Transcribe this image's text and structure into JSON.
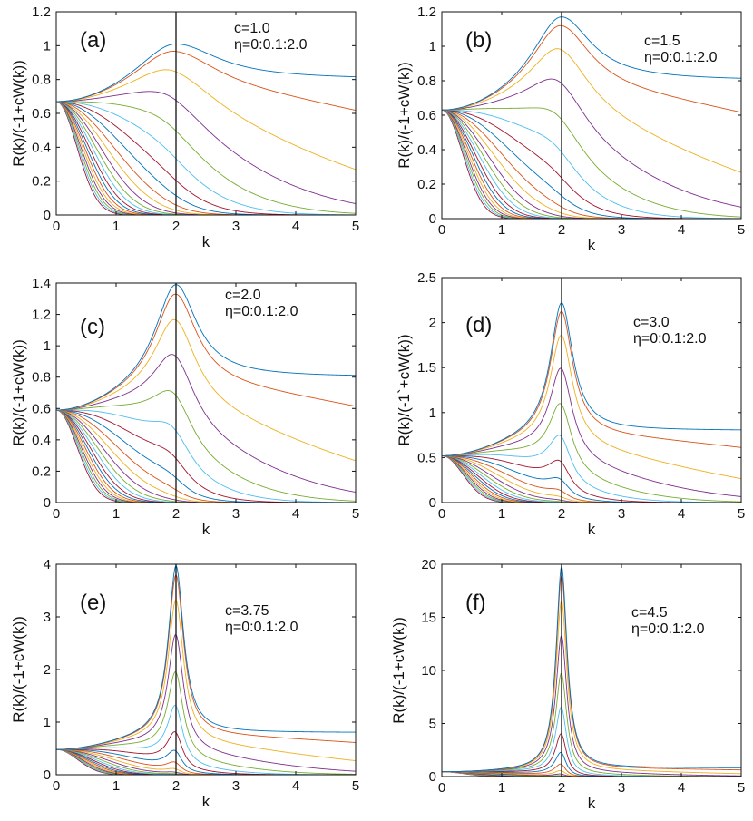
{
  "chart_data": [
    {
      "type": "line",
      "panel_label": "(a)",
      "c": 1.0,
      "annotation_c": "c=1.0",
      "annotation_eta": "η=0:0.1:2.0",
      "xlabel": "k",
      "ylabel": "R(k)/(-1+cW(k))",
      "xlim": [
        0,
        5
      ],
      "ylim": [
        0,
        1.2
      ],
      "xticks": [
        "0",
        "1",
        "2",
        "3",
        "4",
        "5"
      ],
      "yticks": [
        "0",
        "0.2",
        "0.4",
        "0.6",
        "0.8",
        "1",
        "1.2"
      ],
      "ytick_values": [
        0,
        0.2,
        0.4,
        0.6,
        0.8,
        1.0,
        1.2
      ],
      "y0": 0.67,
      "peak_eta0": 1.01,
      "tail_eta0": 0.8,
      "vertical_line_x": 2,
      "eta": [
        0,
        0.1,
        0.2,
        0.3,
        0.4,
        0.5,
        0.6,
        0.7,
        0.8,
        0.9,
        1.0,
        1.1,
        1.2,
        1.3,
        1.4,
        1.5,
        1.6,
        1.7,
        1.8,
        1.9,
        2.0
      ]
    },
    {
      "type": "line",
      "panel_label": "(b)",
      "c": 1.5,
      "annotation_c": "c=1.5",
      "annotation_eta": "η=0:0.1:2.0",
      "xlabel": "k",
      "ylabel": "R(k)/(-1+cW(k))",
      "xlim": [
        0,
        5
      ],
      "ylim": [
        0,
        1.2
      ],
      "xticks": [
        "0",
        "1",
        "2",
        "3",
        "4",
        "5"
      ],
      "yticks": [
        "0",
        "0.2",
        "0.4",
        "0.6",
        "0.8",
        "1",
        "1.2"
      ],
      "ytick_values": [
        0,
        0.2,
        0.4,
        0.6,
        0.8,
        1.0,
        1.2
      ],
      "y0": 0.63,
      "peak_eta0": 1.17,
      "tail_eta0": 0.8,
      "vertical_line_x": 2,
      "eta": [
        0,
        0.1,
        0.2,
        0.3,
        0.4,
        0.5,
        0.6,
        0.7,
        0.8,
        0.9,
        1.0,
        1.1,
        1.2,
        1.3,
        1.4,
        1.5,
        1.6,
        1.7,
        1.8,
        1.9,
        2.0
      ]
    },
    {
      "type": "line",
      "panel_label": "(c)",
      "c": 2.0,
      "annotation_c": "c=2.0",
      "annotation_eta": "η=0:0.1:2.0",
      "xlabel": "k",
      "ylabel": "R(k)/(-1+cW(k))",
      "xlim": [
        0,
        5
      ],
      "ylim": [
        0,
        1.4
      ],
      "xticks": [
        "0",
        "1",
        "2",
        "3",
        "4",
        "5"
      ],
      "yticks": [
        "0",
        "0.2",
        "0.4",
        "0.6",
        "0.8",
        "1",
        "1.2",
        "1.4"
      ],
      "ytick_values": [
        0,
        0.2,
        0.4,
        0.6,
        0.8,
        1.0,
        1.2,
        1.4
      ],
      "y0": 0.59,
      "peak_eta0": 1.39,
      "tail_eta0": 0.8,
      "vertical_line_x": 2,
      "eta": [
        0,
        0.1,
        0.2,
        0.3,
        0.4,
        0.5,
        0.6,
        0.7,
        0.8,
        0.9,
        1.0,
        1.1,
        1.2,
        1.3,
        1.4,
        1.5,
        1.6,
        1.7,
        1.8,
        1.9,
        2.0
      ]
    },
    {
      "type": "line",
      "panel_label": "(d)",
      "c": 3.0,
      "annotation_c": "c=3.0",
      "annotation_eta": "η=0:0.1:2.0",
      "xlabel": "k",
      "ylabel": "R(k)/(-1`+cW(k))",
      "xlim": [
        0,
        5
      ],
      "ylim": [
        0,
        2.5
      ],
      "xticks": [
        "0",
        "1",
        "2",
        "3",
        "4",
        "5"
      ],
      "yticks": [
        "0",
        "0.5",
        "1",
        "1.5",
        "2",
        "2.5"
      ],
      "ytick_values": [
        0,
        0.5,
        1.0,
        1.5,
        2.0,
        2.5
      ],
      "y0": 0.52,
      "peak_eta0": 2.22,
      "tail_eta0": 0.8,
      "vertical_line_x": 2,
      "eta": [
        0,
        0.1,
        0.2,
        0.3,
        0.4,
        0.5,
        0.6,
        0.7,
        0.8,
        0.9,
        1.0,
        1.1,
        1.2,
        1.3,
        1.4,
        1.5,
        1.6,
        1.7,
        1.8,
        1.9,
        2.0
      ]
    },
    {
      "type": "line",
      "panel_label": "(e)",
      "c": 3.75,
      "annotation_c": "c=3.75",
      "annotation_eta": "η=0:0.1:2.0",
      "xlabel": "k",
      "ylabel": "R(k)/(-1+cW(k))",
      "xlim": [
        0,
        5
      ],
      "ylim": [
        0,
        4
      ],
      "xticks": [
        "0",
        "1",
        "2",
        "3",
        "4",
        "5"
      ],
      "yticks": [
        "0",
        "1",
        "2",
        "3",
        "4"
      ],
      "ytick_values": [
        0,
        1,
        2,
        3,
        4
      ],
      "y0": 0.48,
      "peak_eta0": 3.97,
      "tail_eta0": 0.8,
      "vertical_line_x": 2,
      "eta": [
        0,
        0.1,
        0.2,
        0.3,
        0.4,
        0.5,
        0.6,
        0.7,
        0.8,
        0.9,
        1.0,
        1.1,
        1.2,
        1.3,
        1.4,
        1.5,
        1.6,
        1.7,
        1.8,
        1.9,
        2.0
      ]
    },
    {
      "type": "line",
      "panel_label": "(f)",
      "c": 4.5,
      "annotation_c": "c=4.5",
      "annotation_eta": "η=0:0.1:2.0",
      "xlabel": "k",
      "ylabel": "R(k)/(-1+cW(k))",
      "xlim": [
        0,
        5
      ],
      "ylim": [
        0,
        20
      ],
      "xticks": [
        "0",
        "1",
        "2",
        "3",
        "4",
        "5"
      ],
      "yticks": [
        "0",
        "5",
        "10",
        "15",
        "20"
      ],
      "ytick_values": [
        0,
        5,
        10,
        15,
        20
      ],
      "y0": 0.45,
      "peak_eta0": 19.8,
      "tail_eta0": 0.8,
      "vertical_line_x": 2,
      "eta": [
        0,
        0.1,
        0.2,
        0.3,
        0.4,
        0.5,
        0.6,
        0.7,
        0.8,
        0.9,
        1.0,
        1.1,
        1.2,
        1.3,
        1.4,
        1.5,
        1.6,
        1.7,
        1.8,
        1.9,
        2.0
      ]
    }
  ],
  "palette": [
    "#0072BD",
    "#D95319",
    "#EDB120",
    "#7E2F8E",
    "#77AC30",
    "#4DBEEE",
    "#A2142F"
  ]
}
